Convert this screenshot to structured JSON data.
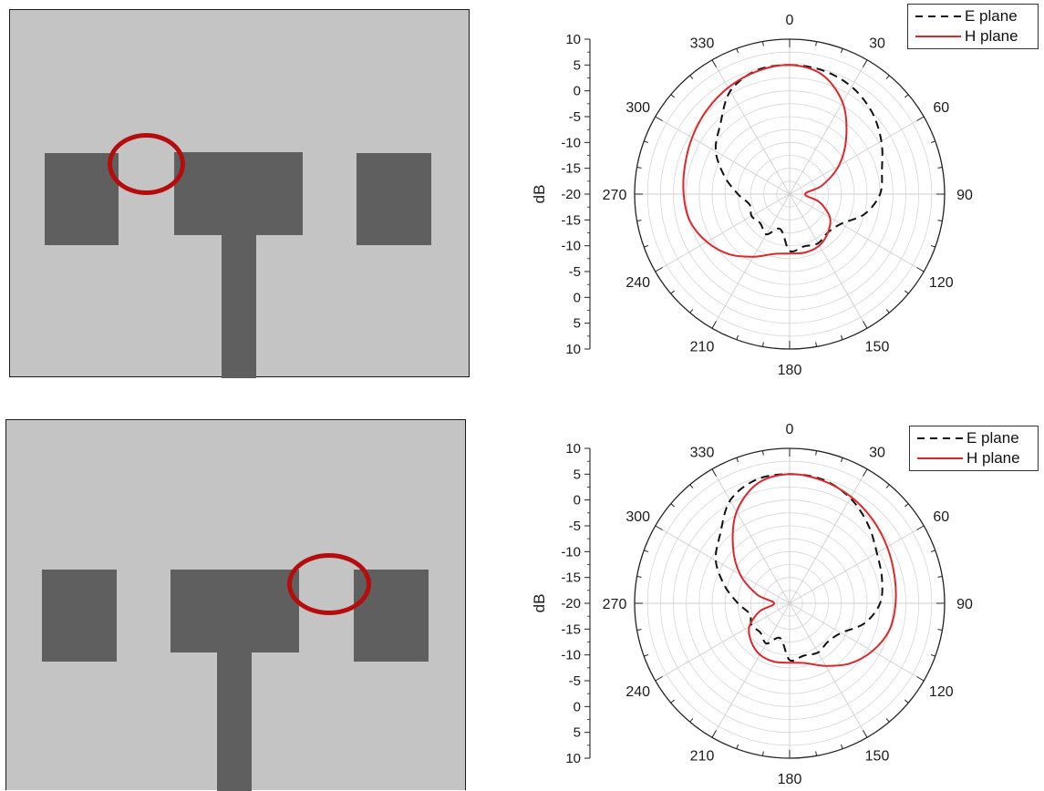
{
  "colors": {
    "substrate": "#c4c4c4",
    "patch": "#5f5f5f",
    "marker": "#b50d0d",
    "e_plane": "#111111",
    "h_plane": "#e0262b"
  },
  "chart_data": [
    {
      "type": "polar",
      "angle_ticks": [
        "0",
        "30",
        "60",
        "90",
        "120",
        "150",
        "180",
        "210",
        "240",
        "270",
        "300",
        "330"
      ],
      "radial_axis_label": "dB",
      "radial_tick_labels": [
        "10",
        "5",
        "0",
        "-5",
        "-10",
        "-15",
        "-20",
        "-15",
        "-10",
        "-5",
        "0",
        "5",
        "10"
      ],
      "rlim": [
        -20,
        10
      ],
      "grid": true,
      "legend_position": "top-right",
      "series": [
        {
          "name": "E plane",
          "style": "dashed",
          "color": "#111111",
          "angles": [
            0,
            15,
            30,
            45,
            60,
            75,
            90,
            105,
            120,
            135,
            150,
            165,
            180,
            195,
            210,
            225,
            240,
            255,
            270,
            285,
            300,
            315,
            330,
            345
          ],
          "values": [
            5.0,
            4.8,
            4.0,
            2.5,
            0.5,
            -1.5,
            -2.5,
            -5.0,
            -8.5,
            -9.5,
            -9.0,
            -9.5,
            -9.0,
            -13.0,
            -11.0,
            -12.0,
            -11.5,
            -12.0,
            -10.0,
            -7.0,
            -3.5,
            -1.0,
            3.0,
            4.8
          ]
        },
        {
          "name": "H plane",
          "style": "solid",
          "color": "#e0262b",
          "angles": [
            0,
            15,
            30,
            45,
            60,
            75,
            90,
            105,
            120,
            135,
            150,
            165,
            180,
            195,
            210,
            225,
            240,
            255,
            270,
            285,
            300,
            315,
            330,
            345
          ],
          "values": [
            5.0,
            4.0,
            0.5,
            -4.5,
            -9.0,
            -13.5,
            -17.0,
            -14.0,
            -11.0,
            -9.5,
            -8.5,
            -8.3,
            -8.5,
            -8.0,
            -6.0,
            -3.5,
            -1.5,
            0.0,
            0.5,
            1.0,
            1.8,
            2.8,
            3.8,
            4.6
          ]
        }
      ]
    },
    {
      "type": "polar",
      "angle_ticks": [
        "0",
        "30",
        "60",
        "90",
        "120",
        "150",
        "180",
        "210",
        "240",
        "270",
        "300",
        "330"
      ],
      "radial_axis_label": "dB",
      "radial_tick_labels": [
        "10",
        "5",
        "0",
        "-5",
        "-10",
        "-15",
        "-20",
        "-15",
        "-10",
        "-5",
        "0",
        "5",
        "10"
      ],
      "rlim": [
        -20,
        10
      ],
      "grid": true,
      "legend_position": "top-right",
      "series": [
        {
          "name": "E plane",
          "style": "dashed",
          "color": "#111111",
          "angles": [
            0,
            15,
            30,
            45,
            60,
            75,
            90,
            105,
            120,
            135,
            150,
            165,
            180,
            195,
            210,
            225,
            240,
            255,
            270,
            285,
            300,
            315,
            330,
            345
          ],
          "values": [
            5.0,
            4.8,
            3.5,
            1.5,
            -0.5,
            -1.5,
            -2.5,
            -5.0,
            -8.5,
            -9.5,
            -9.0,
            -9.5,
            -9.0,
            -13.0,
            -11.0,
            -12.0,
            -11.5,
            -12.0,
            -10.0,
            -7.0,
            -3.5,
            -1.0,
            3.0,
            4.8
          ]
        },
        {
          "name": "H plane",
          "style": "solid",
          "color": "#e0262b",
          "angles": [
            0,
            15,
            30,
            45,
            60,
            75,
            90,
            105,
            120,
            135,
            150,
            165,
            180,
            195,
            210,
            225,
            240,
            255,
            270,
            285,
            300,
            315,
            330,
            345
          ],
          "values": [
            5.0,
            4.6,
            3.8,
            2.8,
            1.8,
            1.0,
            0.5,
            0.0,
            -1.5,
            -3.5,
            -6.0,
            -8.0,
            -8.5,
            -8.3,
            -8.5,
            -9.5,
            -11.0,
            -14.0,
            -17.0,
            -13.5,
            -9.0,
            -4.5,
            0.5,
            4.0
          ]
        }
      ]
    }
  ]
}
